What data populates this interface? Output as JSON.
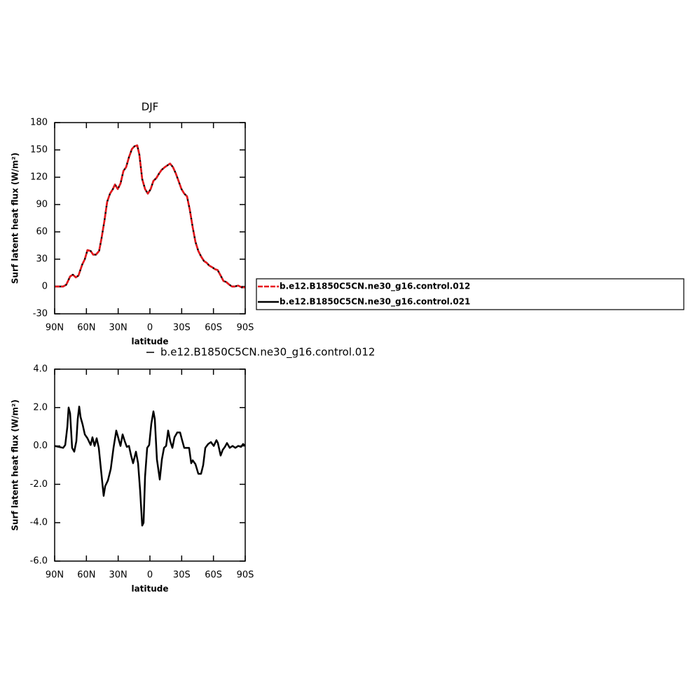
{
  "chart_data": [
    {
      "type": "line",
      "title": "DJF",
      "x_label": "latitude",
      "y_label": "Surf latent heat flux (W/m²)",
      "xlim": [
        90,
        -90
      ],
      "ylim": [
        -30,
        180
      ],
      "xticks": [
        {
          "value": 90,
          "label": "90N"
        },
        {
          "value": 60,
          "label": "60N"
        },
        {
          "value": 30,
          "label": "30N"
        },
        0,
        {
          "value": -30,
          "label": "30S"
        },
        {
          "value": -60,
          "label": "60S"
        },
        {
          "value": -90,
          "label": "90S"
        }
      ],
      "yticks": [
        -30,
        0,
        30,
        60,
        90,
        120,
        150,
        180
      ],
      "legend": "right",
      "x": [
        90,
        82,
        79,
        75.4,
        72.8,
        70,
        67.5,
        64,
        61.5,
        59,
        56,
        53.6,
        51,
        48,
        45.7,
        43,
        40.4,
        37.7,
        35,
        33,
        30.4,
        27.8,
        25,
        22.5,
        19.8,
        17,
        14.6,
        12,
        10,
        7.3,
        4.6,
        2,
        -0.7,
        -3.3,
        -6,
        -8.6,
        -11,
        -14,
        -16.5,
        -19,
        -21.8,
        -24.5,
        -27,
        -29.8,
        -32.4,
        -35,
        -37.7,
        -40.4,
        -43,
        -45.7,
        -48.3,
        -51,
        -53.6,
        -56,
        -59,
        -61.5,
        -64,
        -66.8,
        -69.5,
        -72,
        -75,
        -77.5,
        -80,
        -83.4,
        -86.7,
        -90
      ],
      "series": [
        {
          "name": "b.e12.B1850C5CN.ne30_g16.control.012",
          "color": "#e8161b",
          "line_style": "dashed",
          "values": [
            0,
            0,
            2,
            11,
            13,
            10,
            12,
            24,
            30,
            40,
            39,
            35,
            35,
            39,
            53,
            72,
            93,
            102,
            107,
            112,
            107,
            113,
            127,
            131,
            142,
            151,
            154,
            155,
            145,
            118,
            107,
            102,
            107,
            116,
            119,
            124,
            128,
            131,
            133,
            135,
            131,
            124,
            116,
            107,
            102,
            99,
            84,
            65,
            49,
            39,
            33,
            28,
            26,
            23,
            21,
            19,
            18,
            12,
            6,
            5,
            2,
            0,
            0,
            1,
            -1,
            -1
          ]
        },
        {
          "name": "b.e12.B1850C5CN.ne30_g16.control.021",
          "color": "#000000",
          "line_style": "solid",
          "values": [
            0,
            0,
            2,
            11,
            13,
            10,
            12,
            24,
            30,
            40,
            39,
            35,
            35,
            39,
            53,
            72,
            93,
            102,
            107,
            112,
            107,
            113,
            127,
            131,
            142,
            151,
            154,
            155,
            145,
            118,
            107,
            102,
            107,
            116,
            119,
            124,
            128,
            131,
            133,
            135,
            131,
            124,
            116,
            107,
            102,
            99,
            84,
            65,
            49,
            39,
            33,
            28,
            26,
            23,
            21,
            19,
            18,
            12,
            6,
            5,
            2,
            0,
            0,
            1,
            -1,
            -1
          ]
        }
      ]
    },
    {
      "type": "line",
      "x_label": "latitude",
      "y_label": "Surf latent heat flux (W/m²)",
      "xlim": [
        90,
        -90
      ],
      "ylim": [
        -6,
        4
      ],
      "xticks": [
        {
          "value": 90,
          "label": "90N"
        },
        {
          "value": 60,
          "label": "60N"
        },
        {
          "value": 30,
          "label": "30N"
        },
        0,
        {
          "value": -30,
          "label": "30S"
        },
        {
          "value": -60,
          "label": "60S"
        },
        {
          "value": -90,
          "label": "90S"
        }
      ],
      "yticks": [
        {
          "value": -6,
          "label": "-6.0"
        },
        {
          "value": -4,
          "label": "-4.0"
        },
        {
          "value": -2,
          "label": "-2.0"
        },
        {
          "value": 0,
          "label": "0.0"
        },
        {
          "value": 2,
          "label": "2.0"
        },
        {
          "value": 4,
          "label": "4.0"
        }
      ],
      "legend": "top",
      "x": [
        90,
        82,
        80,
        78,
        76.8,
        75.4,
        73.5,
        71.5,
        69.5,
        68.2,
        66.8,
        65.5,
        63.5,
        61.5,
        59,
        56,
        54.3,
        52.3,
        50.3,
        48.3,
        46.3,
        43.7,
        42.3,
        39.7,
        37,
        34.4,
        31.8,
        29.8,
        27.8,
        25.8,
        23.8,
        21.8,
        19.8,
        17.8,
        15.9,
        13.2,
        11.2,
        9.3,
        7.3,
        6,
        4.6,
        2.6,
        0.7,
        -1.3,
        -3.3,
        -4.6,
        -6.6,
        -9.3,
        -11.3,
        -13.3,
        -15.3,
        -17.2,
        -19.2,
        -21.2,
        -23.2,
        -25.8,
        -28.5,
        -30.4,
        -32.4,
        -34.4,
        -37,
        -39,
        -40.4,
        -43,
        -45.7,
        -48.3,
        -50.3,
        -52.3,
        -55,
        -57.6,
        -60.3,
        -62.8,
        -64.2,
        -66.8,
        -68.8,
        -70.8,
        -72.8,
        -75.4,
        -78,
        -80.7,
        -83.4,
        -86,
        -88,
        -90
      ],
      "series": [
        {
          "name": "b.e12.B1850C5CN.ne30_g16.control.012",
          "color": "#000000",
          "line_style": "solid",
          "values": [
            0,
            -0.1,
            0.05,
            1.0,
            2.0,
            1.7,
            -0.1,
            -0.3,
            0.25,
            1.4,
            2.05,
            1.5,
            1.1,
            0.6,
            0.4,
            0.05,
            0.45,
            0,
            0.4,
            -0.1,
            -1.2,
            -2.6,
            -2.1,
            -1.8,
            -1.2,
            -0.1,
            0.8,
            0.4,
            0,
            0.6,
            0.25,
            -0.05,
            0,
            -0.5,
            -0.9,
            -0.3,
            -0.9,
            -2.3,
            -4.15,
            -4.0,
            -1.6,
            -0.1,
            0.05,
            1.15,
            1.8,
            1.4,
            -0.7,
            -1.75,
            -0.7,
            -0.1,
            0,
            0.8,
            0.25,
            -0.1,
            0.45,
            0.7,
            0.7,
            0.3,
            -0.1,
            -0.1,
            -0.1,
            -0.9,
            -0.75,
            -0.95,
            -1.45,
            -1.45,
            -1.0,
            -0.1,
            0.1,
            0.2,
            0,
            0.3,
            0.15,
            -0.5,
            -0.2,
            -0.05,
            0.15,
            -0.1,
            0,
            -0.1,
            0,
            -0.05,
            0.1,
            0
          ]
        }
      ]
    }
  ]
}
